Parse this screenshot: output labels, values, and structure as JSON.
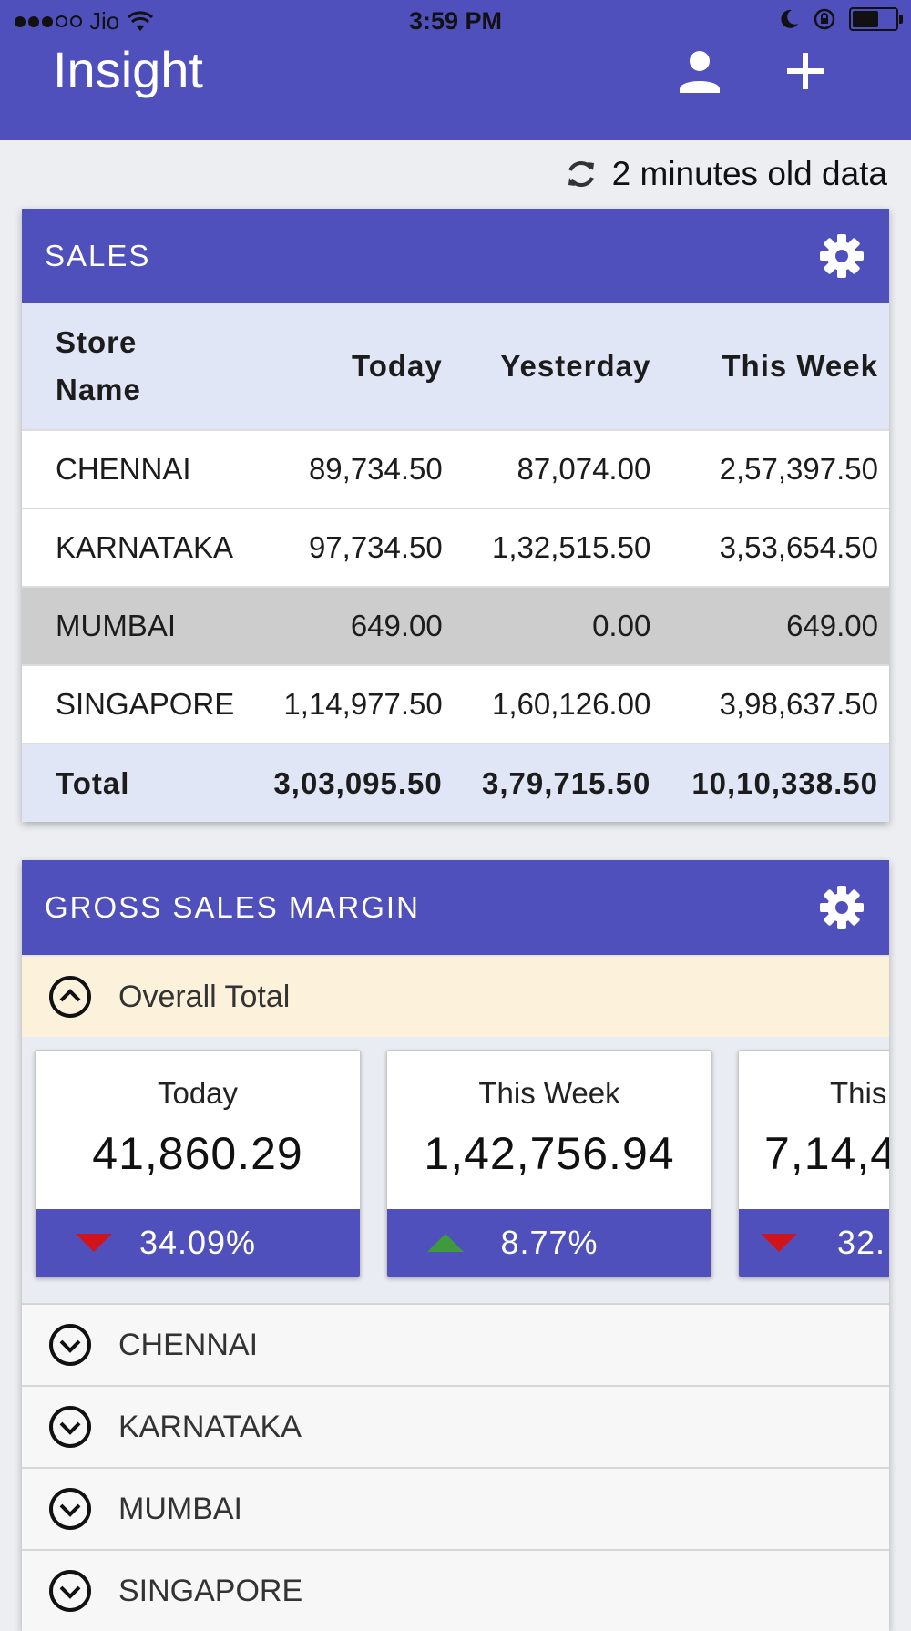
{
  "status_bar": {
    "carrier": "Jio",
    "time": "3:59 PM",
    "battery_percent": 60
  },
  "app_bar": {
    "title": "Insight",
    "icons": [
      "person-icon",
      "plus-icon"
    ]
  },
  "refresh": {
    "text": "2 minutes old data",
    "icon": "refresh-icon"
  },
  "sales": {
    "title": "SALES",
    "columns": [
      "Store Name",
      "Today",
      "Yesterday",
      "This Week"
    ],
    "rows": [
      [
        "CHENNAI",
        "89,734.50",
        "87,074.00",
        "2,57,397.50"
      ],
      [
        "KARNATAKA",
        "97,734.50",
        "1,32,515.50",
        "3,53,654.50"
      ],
      [
        "MUMBAI",
        "649.00",
        "0.00",
        "649.00"
      ],
      [
        "SINGAPORE",
        "1,14,977.50",
        "1,60,126.00",
        "3,98,637.50"
      ]
    ],
    "highlighted_row": 2,
    "total": [
      "Total",
      "3,03,095.50",
      "3,79,715.50",
      "10,10,338.50"
    ]
  },
  "gsm": {
    "title": "GROSS SALES MARGIN",
    "overall_label": "Overall Total",
    "tiles": [
      {
        "label": "Today",
        "value": "41,860.29",
        "change": "34.09%",
        "trend": "down"
      },
      {
        "label": "This Week",
        "value": "1,42,756.94",
        "change": "8.77%",
        "trend": "up"
      },
      {
        "label": "This",
        "value": "7,14,4",
        "change": "32.",
        "trend": "down"
      }
    ],
    "stores": [
      "CHENNAI",
      "KARNATAKA",
      "MUMBAI",
      "SINGAPORE"
    ]
  },
  "colors": {
    "primary": "#5050bd",
    "header_row": "#e1e6f6",
    "highlight_row": "#cdcdcd",
    "overall_bg": "#fcf2dc",
    "trend_down": "#d0141b",
    "trend_up": "#3f9a3c"
  }
}
